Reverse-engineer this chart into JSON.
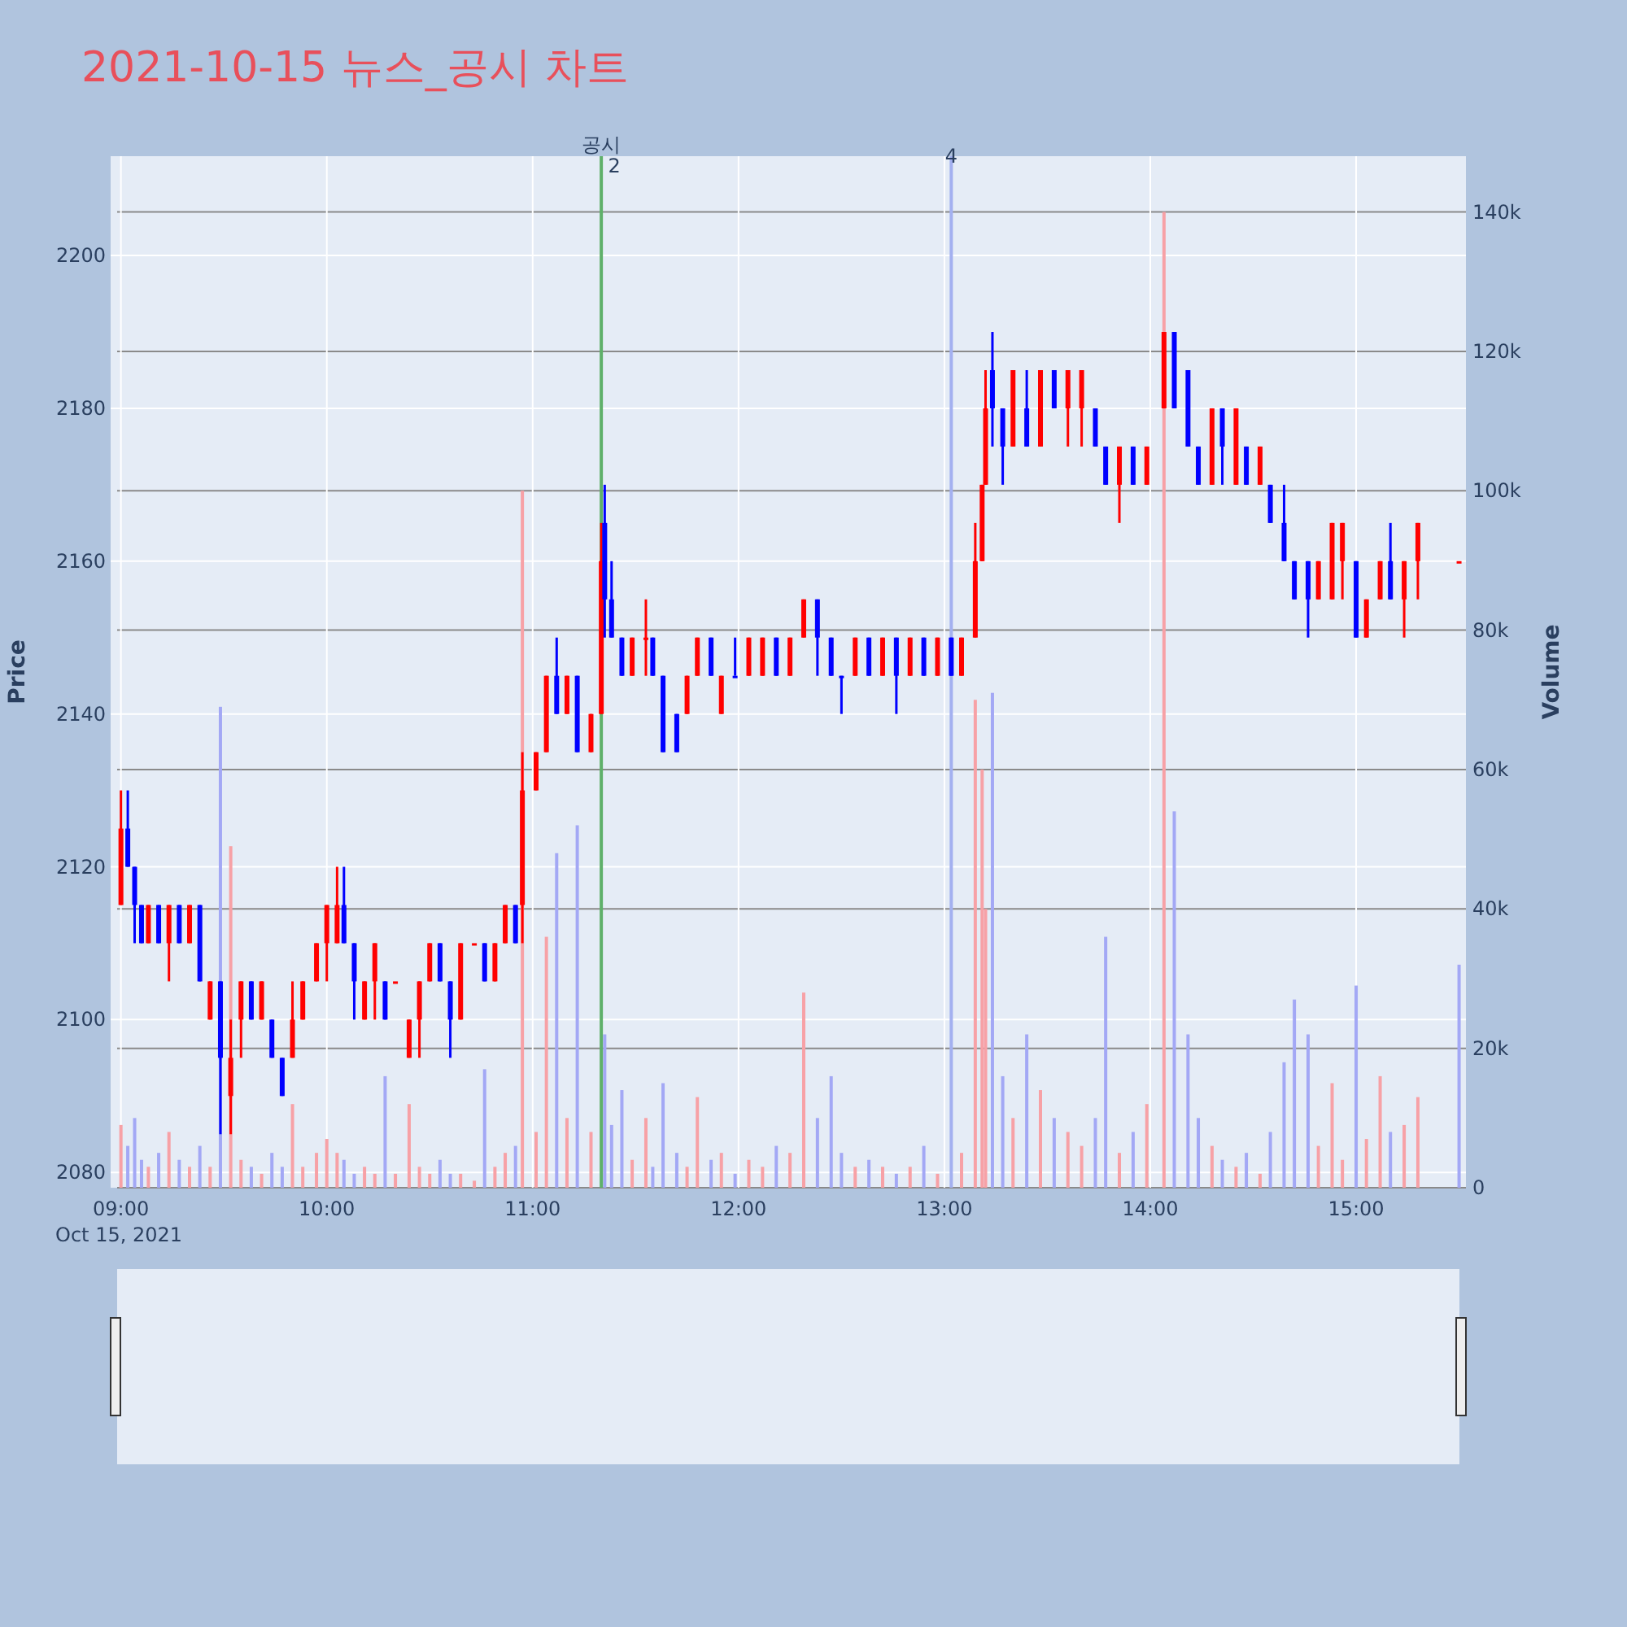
{
  "chart_data": {
    "type": "candlestick",
    "title": "2021-10-15 뉴스_공시 차트",
    "ylabel": "Price",
    "y2label": "Volume",
    "xlim": [
      "2021-10-15T08:57",
      "2021-10-15T15:32"
    ],
    "xticks": [
      {
        "value": "2021-10-15T09:00",
        "label": "09:00\nOct 15, 2021"
      },
      {
        "value": "2021-10-15T10:00",
        "label": "10:00"
      },
      {
        "value": "2021-10-15T11:00",
        "label": "11:00"
      },
      {
        "value": "2021-10-15T12:00",
        "label": "12:00"
      },
      {
        "value": "2021-10-15T13:00",
        "label": "13:00"
      },
      {
        "value": "2021-10-15T14:00",
        "label": "14:00"
      },
      {
        "value": "2021-10-15T15:00",
        "label": "15:00"
      }
    ],
    "ylim": [
      2078,
      2213
    ],
    "yticks": [
      2080,
      2100,
      2120,
      2140,
      2160,
      2180,
      2200
    ],
    "y2lim": [
      0,
      148000
    ],
    "y2ticks": [
      0,
      {
        "value": 20000,
        "label": "20k"
      },
      {
        "value": 40000,
        "label": "40k"
      },
      {
        "value": 60000,
        "label": "60k"
      },
      {
        "value": 80000,
        "label": "80k"
      },
      {
        "value": 100000,
        "label": "100k"
      },
      {
        "value": 120000,
        "label": "120k"
      },
      {
        "value": 140000,
        "label": "140k"
      }
    ],
    "grid": true,
    "ref_lines": [
      {
        "axis": "x",
        "value": "2021-10-15T11:20",
        "label": "공시",
        "color": "#5fb06a"
      },
      {
        "axis": "x",
        "value": "2021-10-15T13:02",
        "label": "4",
        "color": "#a3b0f0"
      }
    ],
    "annotations": [
      {
        "text": "2",
        "x": "2021-10-15T11:20",
        "y": 2213
      }
    ],
    "x": [
      "2021-10-15T09:00",
      "2021-10-15T09:02",
      "2021-10-15T09:04",
      "2021-10-15T09:06",
      "2021-10-15T09:08",
      "2021-10-15T09:11",
      "2021-10-15T09:14",
      "2021-10-15T09:17",
      "2021-10-15T09:20",
      "2021-10-15T09:23",
      "2021-10-15T09:26",
      "2021-10-15T09:29",
      "2021-10-15T09:32",
      "2021-10-15T09:35",
      "2021-10-15T09:38",
      "2021-10-15T09:41",
      "2021-10-15T09:44",
      "2021-10-15T09:47",
      "2021-10-15T09:50",
      "2021-10-15T09:53",
      "2021-10-15T09:57",
      "2021-10-15T10:00",
      "2021-10-15T10:03",
      "2021-10-15T10:05",
      "2021-10-15T10:08",
      "2021-10-15T10:11",
      "2021-10-15T10:14",
      "2021-10-15T10:17",
      "2021-10-15T10:20",
      "2021-10-15T10:24",
      "2021-10-15T10:27",
      "2021-10-15T10:30",
      "2021-10-15T10:33",
      "2021-10-15T10:36",
      "2021-10-15T10:39",
      "2021-10-15T10:43",
      "2021-10-15T10:46",
      "2021-10-15T10:49",
      "2021-10-15T10:52",
      "2021-10-15T10:55",
      "2021-10-15T10:57",
      "2021-10-15T11:01",
      "2021-10-15T11:04",
      "2021-10-15T11:07",
      "2021-10-15T11:10",
      "2021-10-15T11:13",
      "2021-10-15T11:17",
      "2021-10-15T11:20",
      "2021-10-15T11:21",
      "2021-10-15T11:23",
      "2021-10-15T11:26",
      "2021-10-15T11:29",
      "2021-10-15T11:33",
      "2021-10-15T11:35",
      "2021-10-15T11:38",
      "2021-10-15T11:42",
      "2021-10-15T11:45",
      "2021-10-15T11:48",
      "2021-10-15T11:52",
      "2021-10-15T11:55",
      "2021-10-15T11:59",
      "2021-10-15T12:03",
      "2021-10-15T12:07",
      "2021-10-15T12:11",
      "2021-10-15T12:15",
      "2021-10-15T12:19",
      "2021-10-15T12:23",
      "2021-10-15T12:27",
      "2021-10-15T12:30",
      "2021-10-15T12:34",
      "2021-10-15T12:38",
      "2021-10-15T12:42",
      "2021-10-15T12:46",
      "2021-10-15T12:50",
      "2021-10-15T12:54",
      "2021-10-15T12:58",
      "2021-10-15T13:02",
      "2021-10-15T13:05",
      "2021-10-15T13:09",
      "2021-10-15T13:11",
      "2021-10-15T13:12",
      "2021-10-15T13:14",
      "2021-10-15T13:17",
      "2021-10-15T13:20",
      "2021-10-15T13:24",
      "2021-10-15T13:28",
      "2021-10-15T13:32",
      "2021-10-15T13:36",
      "2021-10-15T13:40",
      "2021-10-15T13:44",
      "2021-10-15T13:47",
      "2021-10-15T13:51",
      "2021-10-15T13:55",
      "2021-10-15T13:59",
      "2021-10-15T14:04",
      "2021-10-15T14:07",
      "2021-10-15T14:11",
      "2021-10-15T14:14",
      "2021-10-15T14:18",
      "2021-10-15T14:21",
      "2021-10-15T14:25",
      "2021-10-15T14:28",
      "2021-10-15T14:32",
      "2021-10-15T14:35",
      "2021-10-15T14:39",
      "2021-10-15T14:42",
      "2021-10-15T14:46",
      "2021-10-15T14:49",
      "2021-10-15T14:53",
      "2021-10-15T14:56",
      "2021-10-15T15:00",
      "2021-10-15T15:03",
      "2021-10-15T15:07",
      "2021-10-15T15:10",
      "2021-10-15T15:14",
      "2021-10-15T15:18",
      "2021-10-15T15:30"
    ],
    "series": [
      {
        "ohlc": [
          [
            2115,
            2130,
            2115,
            2125
          ],
          [
            2125,
            2130,
            2120,
            2120
          ],
          [
            2120,
            2120,
            2110,
            2115
          ],
          [
            2115,
            2115,
            2110,
            2110
          ],
          [
            2110,
            2115,
            2110,
            2115
          ],
          [
            2115,
            2115,
            2110,
            2110
          ],
          [
            2110,
            2115,
            2105,
            2115
          ],
          [
            2115,
            2115,
            2110,
            2110
          ],
          [
            2110,
            2115,
            2110,
            2115
          ],
          [
            2115,
            2115,
            2105,
            2105
          ],
          [
            2100,
            2105,
            2100,
            2105
          ],
          [
            2105,
            2105,
            2085,
            2095
          ],
          [
            2090,
            2100,
            2085,
            2095
          ],
          [
            2100,
            2105,
            2095,
            2105
          ],
          [
            2105,
            2105,
            2100,
            2100
          ],
          [
            2100,
            2105,
            2100,
            2105
          ],
          [
            2100,
            2100,
            2095,
            2095
          ],
          [
            2095,
            2095,
            2090,
            2090
          ],
          [
            2095,
            2105,
            2095,
            2100
          ],
          [
            2100,
            2105,
            2100,
            2105
          ],
          [
            2105,
            2110,
            2105,
            2110
          ],
          [
            2110,
            2115,
            2105,
            2115
          ],
          [
            2110,
            2120,
            2110,
            2115
          ],
          [
            2115,
            2120,
            2110,
            2110
          ],
          [
            2110,
            2110,
            2100,
            2105
          ],
          [
            2100,
            2105,
            2100,
            2105
          ],
          [
            2105,
            2110,
            2100,
            2110
          ],
          [
            2105,
            2105,
            2100,
            2100
          ],
          [
            2105,
            2105,
            2105,
            2105
          ],
          [
            2095,
            2100,
            2095,
            2100
          ],
          [
            2100,
            2105,
            2095,
            2105
          ],
          [
            2105,
            2110,
            2105,
            2110
          ],
          [
            2110,
            2110,
            2105,
            2105
          ],
          [
            2105,
            2105,
            2095,
            2100
          ],
          [
            2100,
            2110,
            2100,
            2110
          ],
          [
            2110,
            2110,
            2110,
            2110
          ],
          [
            2110,
            2110,
            2105,
            2105
          ],
          [
            2105,
            2110,
            2105,
            2110
          ],
          [
            2110,
            2115,
            2110,
            2115
          ],
          [
            2115,
            2115,
            2110,
            2110
          ],
          [
            2115,
            2135,
            2110,
            2130
          ],
          [
            2130,
            2135,
            2130,
            2135
          ],
          [
            2135,
            2145,
            2135,
            2145
          ],
          [
            2145,
            2150,
            2140,
            2140
          ],
          [
            2140,
            2145,
            2140,
            2145
          ],
          [
            2145,
            2145,
            2135,
            2135
          ],
          [
            2135,
            2140,
            2135,
            2140
          ],
          [
            2140,
            2165,
            2140,
            2160
          ],
          [
            2165,
            2170,
            2150,
            2155
          ],
          [
            2155,
            2160,
            2150,
            2150
          ],
          [
            2150,
            2150,
            2145,
            2145
          ],
          [
            2145,
            2150,
            2145,
            2150
          ],
          [
            2150,
            2155,
            2145,
            2150
          ],
          [
            2150,
            2150,
            2145,
            2145
          ],
          [
            2145,
            2145,
            2135,
            2135
          ],
          [
            2140,
            2140,
            2135,
            2135
          ],
          [
            2140,
            2145,
            2140,
            2145
          ],
          [
            2145,
            2150,
            2145,
            2150
          ],
          [
            2150,
            2150,
            2145,
            2145
          ],
          [
            2140,
            2145,
            2140,
            2145
          ],
          [
            2145,
            2150,
            2145,
            2145
          ],
          [
            2145,
            2150,
            2145,
            2150
          ],
          [
            2145,
            2150,
            2145,
            2150
          ],
          [
            2150,
            2150,
            2145,
            2145
          ],
          [
            2145,
            2150,
            2145,
            2150
          ],
          [
            2150,
            2155,
            2150,
            2155
          ],
          [
            2155,
            2155,
            2145,
            2150
          ],
          [
            2150,
            2150,
            2145,
            2145
          ],
          [
            2145,
            2145,
            2140,
            2145
          ],
          [
            2145,
            2150,
            2145,
            2150
          ],
          [
            2150,
            2150,
            2145,
            2145
          ],
          [
            2145,
            2150,
            2145,
            2150
          ],
          [
            2150,
            2150,
            2140,
            2145
          ],
          [
            2145,
            2150,
            2145,
            2150
          ],
          [
            2150,
            2150,
            2145,
            2145
          ],
          [
            2145,
            2150,
            2145,
            2150
          ],
          [
            2150,
            2150,
            2145,
            2145
          ],
          [
            2145,
            2150,
            2145,
            2150
          ],
          [
            2150,
            2165,
            2150,
            2160
          ],
          [
            2160,
            2170,
            2160,
            2170
          ],
          [
            2170,
            2185,
            2170,
            2180
          ],
          [
            2185,
            2190,
            2175,
            2180
          ],
          [
            2180,
            2180,
            2170,
            2175
          ],
          [
            2175,
            2185,
            2175,
            2185
          ],
          [
            2180,
            2185,
            2175,
            2175
          ],
          [
            2175,
            2185,
            2175,
            2185
          ],
          [
            2185,
            2185,
            2180,
            2180
          ],
          [
            2180,
            2185,
            2175,
            2185
          ],
          [
            2180,
            2185,
            2175,
            2185
          ],
          [
            2180,
            2180,
            2175,
            2175
          ],
          [
            2175,
            2175,
            2170,
            2170
          ],
          [
            2170,
            2175,
            2165,
            2175
          ],
          [
            2175,
            2175,
            2170,
            2170
          ],
          [
            2170,
            2175,
            2170,
            2175
          ],
          [
            2180,
            2190,
            2180,
            2190
          ],
          [
            2190,
            2190,
            2180,
            2180
          ],
          [
            2185,
            2185,
            2175,
            2175
          ],
          [
            2175,
            2175,
            2170,
            2170
          ],
          [
            2170,
            2180,
            2170,
            2180
          ],
          [
            2180,
            2180,
            2170,
            2175
          ],
          [
            2170,
            2180,
            2170,
            2180
          ],
          [
            2175,
            2175,
            2170,
            2170
          ],
          [
            2170,
            2175,
            2170,
            2175
          ],
          [
            2170,
            2170,
            2165,
            2165
          ],
          [
            2165,
            2170,
            2160,
            2160
          ],
          [
            2160,
            2160,
            2155,
            2155
          ],
          [
            2160,
            2160,
            2150,
            2155
          ],
          [
            2155,
            2160,
            2155,
            2160
          ],
          [
            2155,
            2165,
            2155,
            2165
          ],
          [
            2160,
            2165,
            2155,
            2165
          ],
          [
            2160,
            2160,
            2150,
            2150
          ],
          [
            2150,
            2155,
            2150,
            2155
          ],
          [
            2155,
            2160,
            2155,
            2160
          ],
          [
            2160,
            2165,
            2155,
            2155
          ],
          [
            2155,
            2160,
            2150,
            2160
          ],
          [
            2160,
            2165,
            2155,
            2165
          ],
          [
            2160,
            2160,
            2160,
            2160
          ]
        ],
        "colors": [
          "#ff0000",
          "#0000ff",
          "#0000ff",
          "#0000ff",
          "#ff0000",
          "#0000ff",
          "#ff0000",
          "#0000ff",
          "#ff0000",
          "#0000ff",
          "#ff0000",
          "#0000ff",
          "#ff0000",
          "#ff0000",
          "#0000ff",
          "#ff0000",
          "#0000ff",
          "#0000ff",
          "#ff0000",
          "#ff0000",
          "#ff0000",
          "#ff0000",
          "#ff0000",
          "#0000ff",
          "#0000ff",
          "#ff0000",
          "#ff0000",
          "#0000ff",
          "#ff0000",
          "#ff0000",
          "#ff0000",
          "#ff0000",
          "#0000ff",
          "#0000ff",
          "#ff0000",
          "#ff0000",
          "#0000ff",
          "#ff0000",
          "#ff0000",
          "#0000ff",
          "#ff0000",
          "#ff0000",
          "#ff0000",
          "#0000ff",
          "#ff0000",
          "#0000ff",
          "#ff0000",
          "#ff0000",
          "#0000ff",
          "#0000ff",
          "#0000ff",
          "#ff0000",
          "#ff0000",
          "#0000ff",
          "#0000ff",
          "#0000ff",
          "#ff0000",
          "#ff0000",
          "#0000ff",
          "#ff0000",
          "#0000ff",
          "#ff0000",
          "#ff0000",
          "#0000ff",
          "#ff0000",
          "#ff0000",
          "#0000ff",
          "#0000ff",
          "#0000ff",
          "#ff0000",
          "#0000ff",
          "#ff0000",
          "#0000ff",
          "#ff0000",
          "#0000ff",
          "#ff0000",
          "#0000ff",
          "#ff0000",
          "#ff0000",
          "#ff0000",
          "#ff0000",
          "#0000ff",
          "#0000ff",
          "#ff0000",
          "#0000ff",
          "#ff0000",
          "#0000ff",
          "#ff0000",
          "#ff0000",
          "#0000ff",
          "#0000ff",
          "#ff0000",
          "#0000ff",
          "#ff0000",
          "#ff0000",
          "#0000ff",
          "#0000ff",
          "#0000ff",
          "#ff0000",
          "#0000ff",
          "#ff0000",
          "#0000ff",
          "#ff0000",
          "#0000ff",
          "#0000ff",
          "#0000ff",
          "#0000ff",
          "#ff0000",
          "#ff0000",
          "#ff0000",
          "#0000ff",
          "#ff0000",
          "#ff0000",
          "#0000ff",
          "#ff0000",
          "#ff0000",
          "#ff0000"
        ]
      },
      {
        "type": "bar",
        "axis": "y2",
        "values": [
          9000,
          6000,
          10000,
          4000,
          3000,
          5000,
          8000,
          4000,
          3000,
          6000,
          3000,
          69000,
          49000,
          4000,
          3000,
          2000,
          5000,
          3000,
          12000,
          3000,
          5000,
          7000,
          5000,
          4000,
          2000,
          3000,
          2000,
          16000,
          2000,
          12000,
          3000,
          2000,
          4000,
          2000,
          2000,
          1000,
          17000,
          3000,
          5000,
          6000,
          100000,
          8000,
          36000,
          48000,
          10000,
          52000,
          8000,
          null,
          22000,
          9000,
          14000,
          4000,
          10000,
          3000,
          15000,
          5000,
          3000,
          13000,
          4000,
          5000,
          2000,
          4000,
          3000,
          6000,
          5000,
          28000,
          10000,
          16000,
          5000,
          3000,
          4000,
          3000,
          2000,
          3000,
          6000,
          2000,
          null,
          5000,
          70000,
          60000,
          40000,
          71000,
          16000,
          10000,
          22000,
          14000,
          10000,
          8000,
          6000,
          10000,
          36000,
          5000,
          8000,
          12000,
          140000,
          54000,
          22000,
          10000,
          6000,
          4000,
          3000,
          5000,
          2000,
          8000,
          18000,
          27000,
          22000,
          6000,
          15000,
          4000,
          29000,
          7000,
          16000,
          8000,
          9000,
          13000,
          32000
        ],
        "colors": [
          "#f7a1a6",
          "#a3a8f5",
          "#a3a8f5",
          "#a3a8f5",
          "#f7a1a6",
          "#a3a8f5",
          "#f7a1a6",
          "#a3a8f5",
          "#f7a1a6",
          "#a3a8f5",
          "#f7a1a6",
          "#a3a8f5",
          "#f7a1a6",
          "#f7a1a6",
          "#a3a8f5",
          "#f7a1a6",
          "#a3a8f5",
          "#a3a8f5",
          "#f7a1a6",
          "#f7a1a6",
          "#f7a1a6",
          "#f7a1a6",
          "#f7a1a6",
          "#a3a8f5",
          "#a3a8f5",
          "#f7a1a6",
          "#f7a1a6",
          "#a3a8f5",
          "#f7a1a6",
          "#f7a1a6",
          "#f7a1a6",
          "#f7a1a6",
          "#a3a8f5",
          "#a3a8f5",
          "#f7a1a6",
          "#f7a1a6",
          "#a3a8f5",
          "#f7a1a6",
          "#f7a1a6",
          "#a3a8f5",
          "#f7a1a6",
          "#f7a1a6",
          "#f7a1a6",
          "#a3a8f5",
          "#f7a1a6",
          "#a3a8f5",
          "#f7a1a6",
          "#f7a1a6",
          "#a3a8f5",
          "#a3a8f5",
          "#a3a8f5",
          "#f7a1a6",
          "#f7a1a6",
          "#a3a8f5",
          "#a3a8f5",
          "#a3a8f5",
          "#f7a1a6",
          "#f7a1a6",
          "#a3a8f5",
          "#f7a1a6",
          "#a3a8f5",
          "#f7a1a6",
          "#f7a1a6",
          "#a3a8f5",
          "#f7a1a6",
          "#f7a1a6",
          "#a3a8f5",
          "#a3a8f5",
          "#a3a8f5",
          "#f7a1a6",
          "#a3a8f5",
          "#f7a1a6",
          "#a3a8f5",
          "#f7a1a6",
          "#a3a8f5",
          "#f7a1a6",
          "#a3a8f5",
          "#f7a1a6",
          "#f7a1a6",
          "#f7a1a6",
          "#f7a1a6",
          "#a3a8f5",
          "#a3a8f5",
          "#f7a1a6",
          "#a3a8f5",
          "#f7a1a6",
          "#a3a8f5",
          "#f7a1a6",
          "#f7a1a6",
          "#a3a8f5",
          "#a3a8f5",
          "#f7a1a6",
          "#a3a8f5",
          "#f7a1a6",
          "#f7a1a6",
          "#a3a8f5",
          "#a3a8f5",
          "#a3a8f5",
          "#f7a1a6",
          "#a3a8f5",
          "#f7a1a6",
          "#a3a8f5",
          "#f7a1a6",
          "#a3a8f5",
          "#a3a8f5",
          "#a3a8f5",
          "#a3a8f5",
          "#f7a1a6",
          "#f7a1a6",
          "#f7a1a6",
          "#a3a8f5",
          "#f7a1a6",
          "#f7a1a6",
          "#a3a8f5",
          "#f7a1a6",
          "#f7a1a6",
          "#a3a8f5"
        ]
      }
    ]
  }
}
